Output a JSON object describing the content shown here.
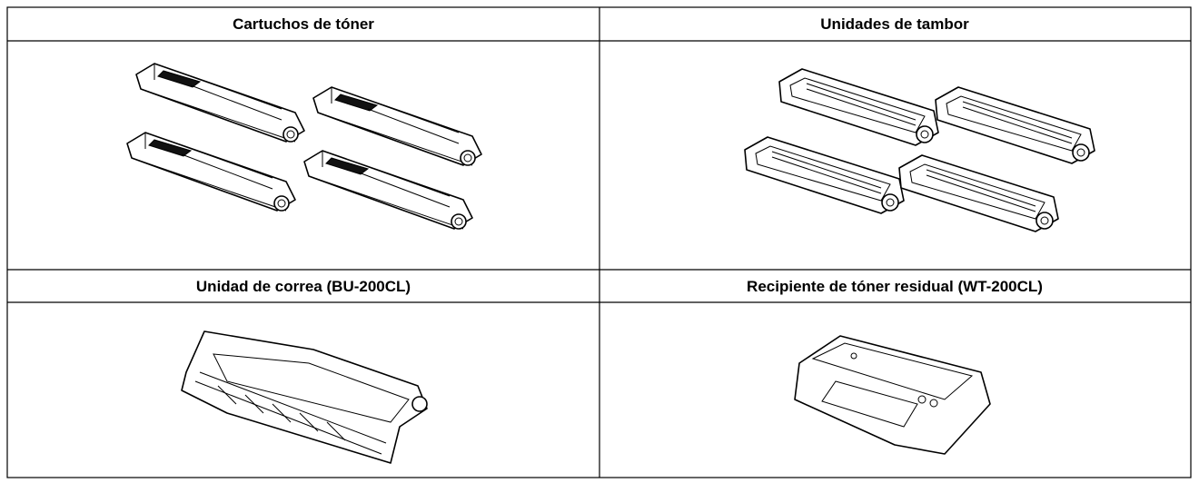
{
  "table": {
    "rows": [
      [
        "Cartuchos de tóner",
        "Unidades de tambor"
      ],
      [
        "Unidad de correa (BU-200CL)",
        "Recipiente de tóner residual (WT-200CL)"
      ]
    ]
  }
}
